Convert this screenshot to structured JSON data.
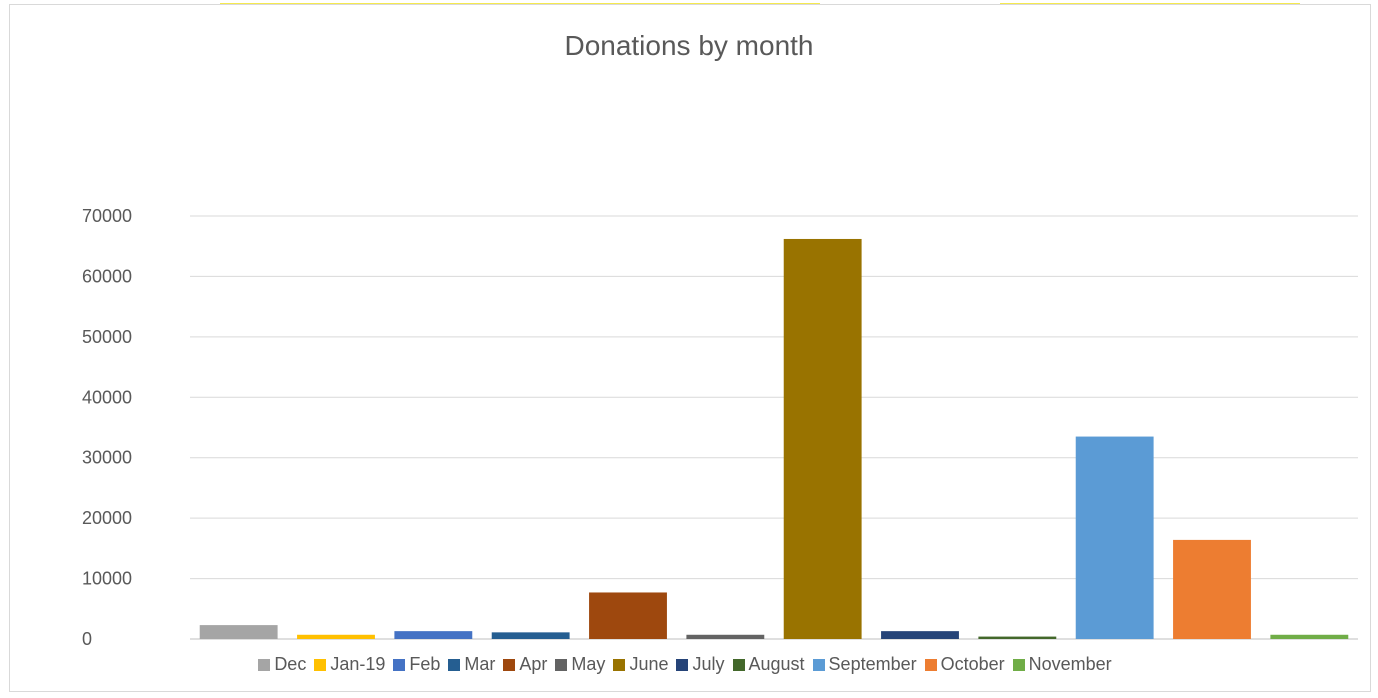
{
  "chart_data": {
    "type": "bar",
    "title": "Donations by month",
    "xlabel": "",
    "ylabel": "",
    "ylim": [
      0,
      70000
    ],
    "yticks": [
      0,
      10000,
      20000,
      30000,
      40000,
      50000,
      60000,
      70000
    ],
    "grid": true,
    "legend_position": "bottom",
    "categories": [
      "Dec",
      "Jan-19",
      "Feb",
      "Mar",
      "Apr",
      "May",
      "June",
      "July",
      "August",
      "September",
      "October",
      "November"
    ],
    "values": [
      2300,
      700,
      1300,
      1100,
      7700,
      700,
      66200,
      1300,
      400,
      33500,
      16400,
      700
    ],
    "colors": [
      "#a5a5a5",
      "#ffc000",
      "#4472c4",
      "#255e91",
      "#9e480e",
      "#636363",
      "#997300",
      "#264478",
      "#43682b",
      "#5b9bd5",
      "#ed7d31",
      "#70ad47"
    ]
  }
}
